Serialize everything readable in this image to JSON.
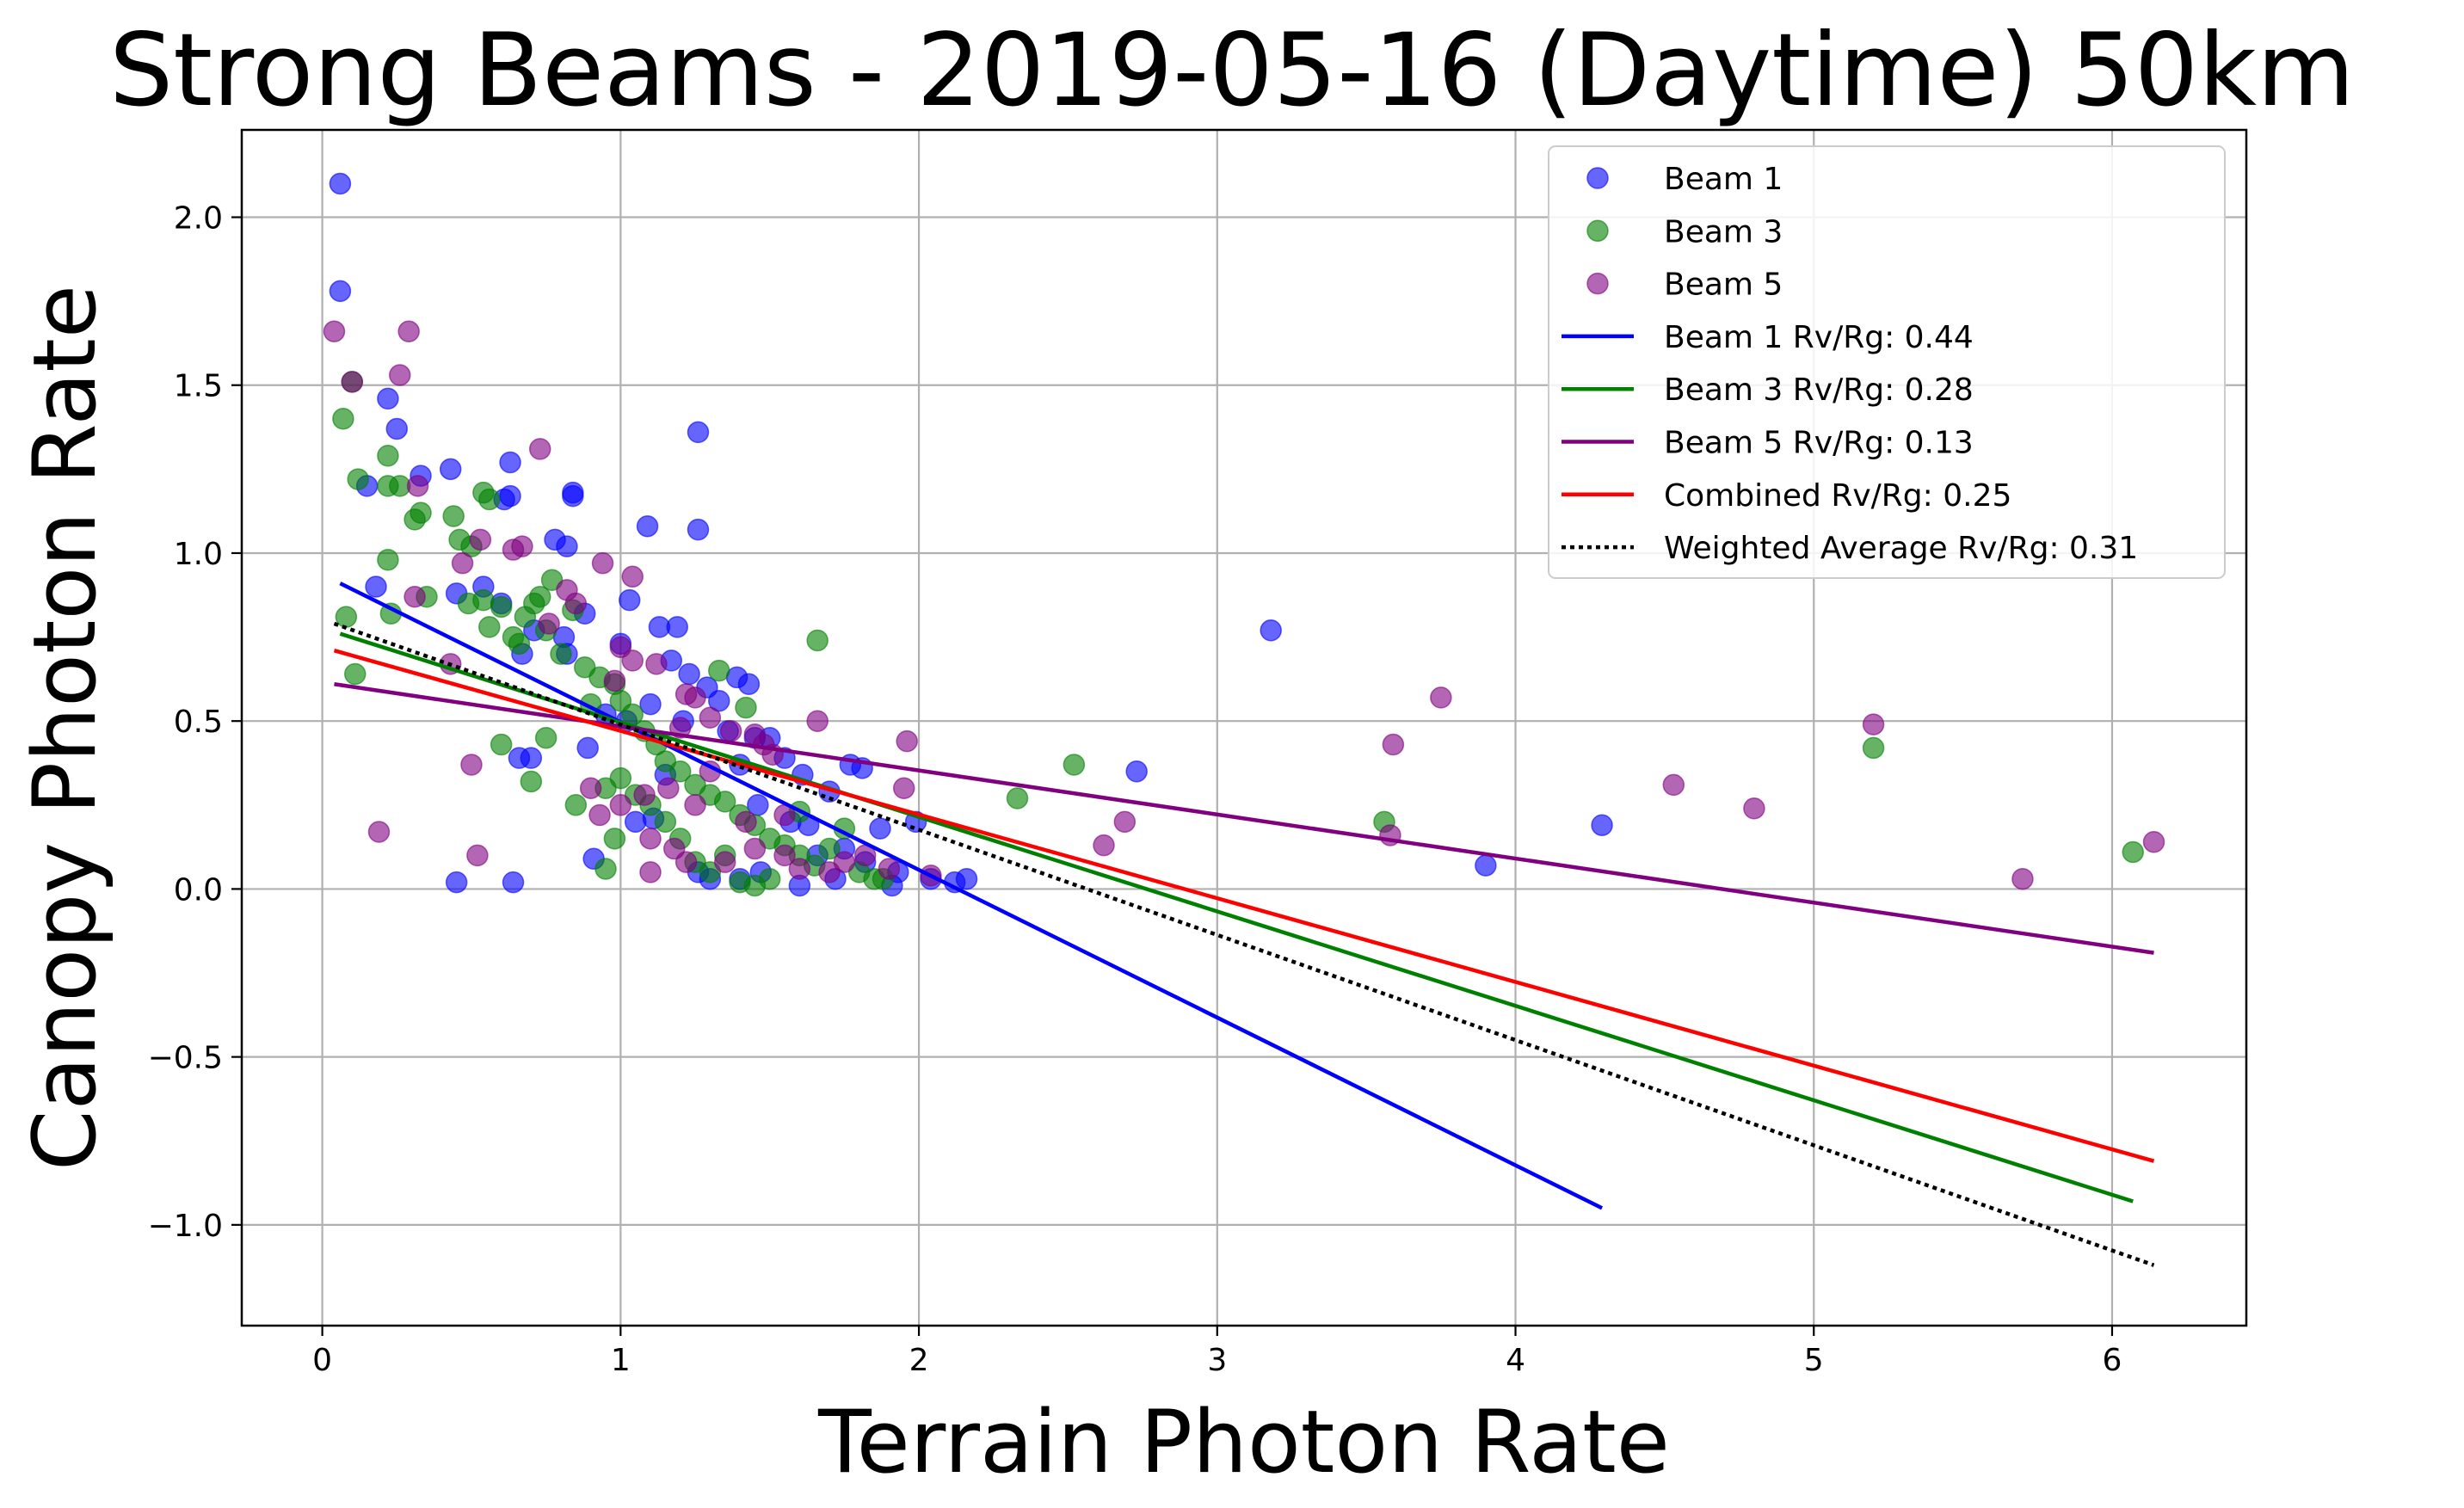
{
  "chart_data": {
    "type": "scatter",
    "title": "Strong Beams - 2019-05-16 (Daytime) 50km",
    "xlabel": "Terrain Photon Rate",
    "ylabel": "Canopy Photon Rate",
    "xlim": [
      -0.27,
      6.45
    ],
    "ylim": [
      -1.3,
      2.26
    ],
    "xticks": [
      0,
      1,
      2,
      3,
      4,
      5,
      6
    ],
    "yticks": [
      -1.0,
      -0.5,
      0.0,
      0.5,
      1.0,
      1.5,
      2.0
    ],
    "xtick_labels": [
      "0",
      "1",
      "2",
      "3",
      "4",
      "5",
      "6"
    ],
    "ytick_labels": [
      "−1.0",
      "−0.5",
      "0.0",
      "0.5",
      "1.0",
      "1.5",
      "2.0"
    ],
    "grid": true,
    "legend_position": "upper right",
    "series": [
      {
        "name": "Beam 1",
        "kind": "scatter",
        "color": "#0000ff",
        "points": [
          [
            0.06,
            2.1
          ],
          [
            0.06,
            1.78
          ],
          [
            0.22,
            1.46
          ],
          [
            0.25,
            1.37
          ],
          [
            0.33,
            1.23
          ],
          [
            0.43,
            1.25
          ],
          [
            0.63,
            1.27
          ],
          [
            0.61,
            1.16
          ],
          [
            0.63,
            1.17
          ],
          [
            0.84,
            1.17
          ],
          [
            0.84,
            1.18
          ],
          [
            0.15,
            1.2
          ],
          [
            1.09,
            1.08
          ],
          [
            1.26,
            1.07
          ],
          [
            1.26,
            1.36
          ],
          [
            0.78,
            1.04
          ],
          [
            0.82,
            1.02
          ],
          [
            0.18,
            0.9
          ],
          [
            0.54,
            0.9
          ],
          [
            0.45,
            0.88
          ],
          [
            0.6,
            0.85
          ],
          [
            1.03,
            0.86
          ],
          [
            0.88,
            0.82
          ],
          [
            1.13,
            0.78
          ],
          [
            1.19,
            0.78
          ],
          [
            0.81,
            0.75
          ],
          [
            1.0,
            0.73
          ],
          [
            0.67,
            0.7
          ],
          [
            0.82,
            0.7
          ],
          [
            0.71,
            0.77
          ],
          [
            1.17,
            0.68
          ],
          [
            1.23,
            0.64
          ],
          [
            1.39,
            0.63
          ],
          [
            1.29,
            0.6
          ],
          [
            1.43,
            0.61
          ],
          [
            1.33,
            0.56
          ],
          [
            1.1,
            0.55
          ],
          [
            0.95,
            0.52
          ],
          [
            1.02,
            0.5
          ],
          [
            1.21,
            0.5
          ],
          [
            1.36,
            0.47
          ],
          [
            1.45,
            0.45
          ],
          [
            1.5,
            0.45
          ],
          [
            1.55,
            0.39
          ],
          [
            1.4,
            0.37
          ],
          [
            1.77,
            0.37
          ],
          [
            1.81,
            0.36
          ],
          [
            1.61,
            0.34
          ],
          [
            1.7,
            0.29
          ],
          [
            1.46,
            0.25
          ],
          [
            1.57,
            0.2
          ],
          [
            1.63,
            0.19
          ],
          [
            1.87,
            0.18
          ],
          [
            1.99,
            0.2
          ],
          [
            1.75,
            0.12
          ],
          [
            1.66,
            0.1
          ],
          [
            1.82,
            0.08
          ],
          [
            1.93,
            0.05
          ],
          [
            2.04,
            0.03
          ],
          [
            1.91,
            0.01
          ],
          [
            2.12,
            0.02
          ],
          [
            2.16,
            0.03
          ],
          [
            0.45,
            0.02
          ],
          [
            0.64,
            0.02
          ],
          [
            0.66,
            0.39
          ],
          [
            0.7,
            0.39
          ],
          [
            0.91,
            0.09
          ],
          [
            1.15,
            0.34
          ],
          [
            1.11,
            0.21
          ],
          [
            1.05,
            0.2
          ],
          [
            0.89,
            0.42
          ],
          [
            1.26,
            0.05
          ],
          [
            1.3,
            0.03
          ],
          [
            1.4,
            0.03
          ],
          [
            1.47,
            0.05
          ],
          [
            1.6,
            0.01
          ],
          [
            1.72,
            0.03
          ],
          [
            2.73,
            0.35
          ],
          [
            3.18,
            0.77
          ],
          [
            3.9,
            0.07
          ],
          [
            4.29,
            0.19
          ]
        ]
      },
      {
        "name": "Beam 3",
        "kind": "scatter",
        "color": "#008000",
        "points": [
          [
            0.1,
            1.51
          ],
          [
            0.07,
            1.4
          ],
          [
            0.12,
            1.22
          ],
          [
            0.22,
            1.29
          ],
          [
            0.22,
            1.2
          ],
          [
            0.26,
            1.2
          ],
          [
            0.31,
            1.1
          ],
          [
            0.33,
            1.12
          ],
          [
            0.44,
            1.11
          ],
          [
            0.46,
            1.04
          ],
          [
            0.5,
            1.02
          ],
          [
            0.54,
            1.18
          ],
          [
            0.56,
            1.16
          ],
          [
            0.49,
            0.85
          ],
          [
            0.54,
            0.86
          ],
          [
            0.6,
            0.84
          ],
          [
            0.22,
            0.98
          ],
          [
            0.35,
            0.87
          ],
          [
            0.08,
            0.81
          ],
          [
            0.23,
            0.82
          ],
          [
            0.11,
            0.64
          ],
          [
            0.56,
            0.78
          ],
          [
            0.64,
            0.75
          ],
          [
            0.66,
            0.73
          ],
          [
            0.68,
            0.81
          ],
          [
            0.71,
            0.85
          ],
          [
            0.73,
            0.87
          ],
          [
            0.75,
            0.77
          ],
          [
            0.77,
            0.92
          ],
          [
            0.8,
            0.7
          ],
          [
            0.84,
            0.83
          ],
          [
            0.88,
            0.66
          ],
          [
            0.9,
            0.55
          ],
          [
            0.93,
            0.63
          ],
          [
            0.98,
            0.61
          ],
          [
            1.0,
            0.56
          ],
          [
            1.04,
            0.52
          ],
          [
            1.08,
            0.47
          ],
          [
            1.12,
            0.43
          ],
          [
            1.15,
            0.38
          ],
          [
            1.2,
            0.35
          ],
          [
            1.25,
            0.31
          ],
          [
            1.3,
            0.28
          ],
          [
            1.35,
            0.26
          ],
          [
            1.4,
            0.22
          ],
          [
            1.45,
            0.19
          ],
          [
            1.5,
            0.15
          ],
          [
            1.55,
            0.13
          ],
          [
            1.6,
            0.1
          ],
          [
            1.65,
            0.07
          ],
          [
            1.7,
            0.12
          ],
          [
            1.75,
            0.18
          ],
          [
            1.8,
            0.05
          ],
          [
            1.85,
            0.03
          ],
          [
            1.88,
            0.03
          ],
          [
            0.95,
            0.3
          ],
          [
            1.0,
            0.33
          ],
          [
            1.05,
            0.28
          ],
          [
            1.1,
            0.25
          ],
          [
            1.15,
            0.2
          ],
          [
            1.2,
            0.15
          ],
          [
            1.25,
            0.08
          ],
          [
            1.3,
            0.05
          ],
          [
            1.35,
            0.1
          ],
          [
            1.4,
            0.02
          ],
          [
            1.45,
            0.01
          ],
          [
            1.5,
            0.03
          ],
          [
            0.6,
            0.43
          ],
          [
            0.75,
            0.45
          ],
          [
            0.7,
            0.32
          ],
          [
            0.85,
            0.25
          ],
          [
            0.95,
            0.06
          ],
          [
            0.98,
            0.15
          ],
          [
            1.33,
            0.65
          ],
          [
            1.42,
            0.54
          ],
          [
            1.6,
            0.23
          ],
          [
            1.66,
            0.74
          ],
          [
            2.33,
            0.27
          ],
          [
            2.52,
            0.37
          ],
          [
            3.56,
            0.2
          ],
          [
            5.2,
            0.42
          ],
          [
            6.07,
            0.11
          ]
        ]
      },
      {
        "name": "Beam 5",
        "kind": "scatter",
        "color": "#800080",
        "points": [
          [
            0.04,
            1.66
          ],
          [
            0.29,
            1.66
          ],
          [
            0.26,
            1.53
          ],
          [
            0.73,
            1.31
          ],
          [
            0.1,
            1.51
          ],
          [
            0.32,
            1.2
          ],
          [
            0.64,
            1.01
          ],
          [
            0.67,
            1.02
          ],
          [
            0.53,
            1.04
          ],
          [
            0.47,
            0.97
          ],
          [
            0.94,
            0.97
          ],
          [
            1.04,
            0.93
          ],
          [
            0.31,
            0.87
          ],
          [
            0.82,
            0.89
          ],
          [
            0.85,
            0.85
          ],
          [
            0.76,
            0.79
          ],
          [
            1.12,
            0.67
          ],
          [
            1.0,
            0.72
          ],
          [
            1.04,
            0.68
          ],
          [
            0.98,
            0.62
          ],
          [
            1.22,
            0.58
          ],
          [
            1.25,
            0.57
          ],
          [
            1.3,
            0.51
          ],
          [
            1.2,
            0.48
          ],
          [
            1.37,
            0.47
          ],
          [
            1.45,
            0.46
          ],
          [
            1.48,
            0.43
          ],
          [
            1.51,
            0.4
          ],
          [
            1.3,
            0.35
          ],
          [
            1.16,
            0.3
          ],
          [
            1.08,
            0.28
          ],
          [
            1.0,
            0.25
          ],
          [
            0.93,
            0.22
          ],
          [
            0.9,
            0.3
          ],
          [
            1.1,
            0.15
          ],
          [
            1.18,
            0.12
          ],
          [
            1.22,
            0.08
          ],
          [
            1.35,
            0.08
          ],
          [
            1.45,
            0.12
          ],
          [
            1.55,
            0.1
          ],
          [
            1.6,
            0.06
          ],
          [
            1.7,
            0.05
          ],
          [
            1.75,
            0.08
          ],
          [
            1.82,
            0.1
          ],
          [
            1.9,
            0.06
          ],
          [
            1.95,
            0.3
          ],
          [
            1.96,
            0.44
          ],
          [
            2.04,
            0.04
          ],
          [
            1.66,
            0.5
          ],
          [
            1.42,
            0.2
          ],
          [
            1.55,
            0.22
          ],
          [
            1.25,
            0.25
          ],
          [
            1.1,
            0.05
          ],
          [
            0.19,
            0.17
          ],
          [
            0.5,
            0.37
          ],
          [
            0.52,
            0.1
          ],
          [
            0.43,
            0.67
          ],
          [
            2.62,
            0.13
          ],
          [
            2.69,
            0.2
          ],
          [
            3.58,
            0.16
          ],
          [
            3.59,
            0.43
          ],
          [
            3.75,
            0.57
          ],
          [
            4.53,
            0.31
          ],
          [
            4.8,
            0.24
          ],
          [
            5.2,
            0.49
          ],
          [
            5.7,
            0.03
          ],
          [
            6.14,
            0.14
          ]
        ]
      },
      {
        "name": "Beam 1 Rv/Rg: 0.44",
        "kind": "line",
        "color": "#0000ff",
        "dash": "solid",
        "x": [
          0.06,
          4.29
        ],
        "y": [
          0.91,
          -0.95
        ]
      },
      {
        "name": "Beam 3 Rv/Rg: 0.28",
        "kind": "line",
        "color": "#008000",
        "dash": "solid",
        "x": [
          0.06,
          6.07
        ],
        "y": [
          0.76,
          -0.93
        ]
      },
      {
        "name": "Beam 5 Rv/Rg: 0.13",
        "kind": "line",
        "color": "#800080",
        "dash": "solid",
        "x": [
          0.04,
          6.14
        ],
        "y": [
          0.61,
          -0.19
        ]
      },
      {
        "name": "Combined Rv/Rg: 0.25",
        "kind": "line",
        "color": "#ff0000",
        "dash": "solid",
        "x": [
          0.04,
          6.14
        ],
        "y": [
          0.71,
          -0.81
        ]
      },
      {
        "name": "Weighted Average Rv/Rg: 0.31",
        "kind": "line",
        "color": "#000000",
        "dash": "dotted",
        "x": [
          0.04,
          6.14
        ],
        "y": [
          0.79,
          -1.12
        ]
      }
    ]
  }
}
